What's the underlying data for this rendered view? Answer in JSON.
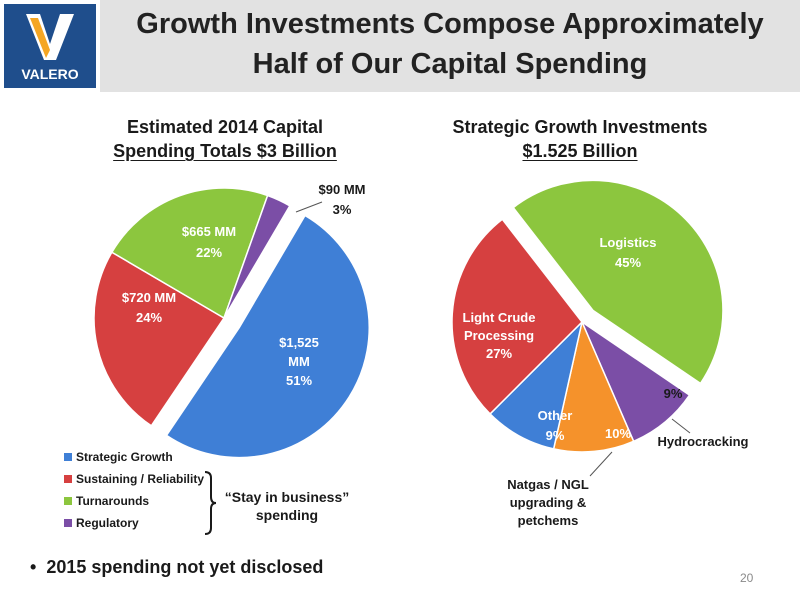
{
  "header": {
    "title_line1": "Growth Investments Compose Approximately",
    "title_line2": "Half of Our Capital Spending",
    "logo_text": "VALERO",
    "band_color": "#e2e2e2",
    "brand_color": "#1f4e8c"
  },
  "left_chart": {
    "title_line1": "Estimated 2014 Capital",
    "title_line2": "Spending Totals $3 Billion"
  },
  "right_chart": {
    "title_line1": "Strategic Growth Investments",
    "title_line2": "$1.525 Billion"
  },
  "legend": {
    "items": [
      {
        "label": "Strategic Growth",
        "color": "#3f7fd6"
      },
      {
        "label": "Sustaining / Reliability",
        "color": "#d64040"
      },
      {
        "label": "Turnarounds",
        "color": "#8cc63e"
      },
      {
        "label": "Regulatory",
        "color": "#7b4ea6"
      }
    ]
  },
  "brace_note": {
    "line1": "“Stay in business”",
    "line2": "spending"
  },
  "bullet": "2015 spending not yet disclosed",
  "page_number": "20",
  "chart_data": [
    {
      "type": "pie",
      "title": "Estimated 2014 Capital Spending Totals $3 Billion",
      "categories": [
        "Strategic Growth",
        "Sustaining / Reliability",
        "Turnarounds",
        "Regulatory"
      ],
      "values": [
        51,
        24,
        22,
        3
      ],
      "amount_labels": [
        "$1,525 MM",
        "$720 MM",
        "$665 MM",
        "$90 MM"
      ],
      "percent_labels": [
        "51%",
        "24%",
        "22%",
        "3%"
      ],
      "colors": [
        "#3f7fd6",
        "#d64040",
        "#8cc63e",
        "#7b4ea6"
      ],
      "exploded": "Strategic Growth"
    },
    {
      "type": "pie",
      "title": "Strategic Growth Investments $1.525 Billion",
      "categories": [
        "Logistics",
        "Hydrocracking",
        "Natgas / NGL upgrading & petchems",
        "Other",
        "Light Crude Processing"
      ],
      "values": [
        45,
        9,
        10,
        9,
        27
      ],
      "percent_labels": [
        "45%",
        "9%",
        "10%",
        "9%",
        "27%"
      ],
      "colors": [
        "#8cc63e",
        "#7b4ea6",
        "#f5922b",
        "#3f7fd6",
        "#d64040"
      ],
      "exploded": "Logistics"
    }
  ]
}
